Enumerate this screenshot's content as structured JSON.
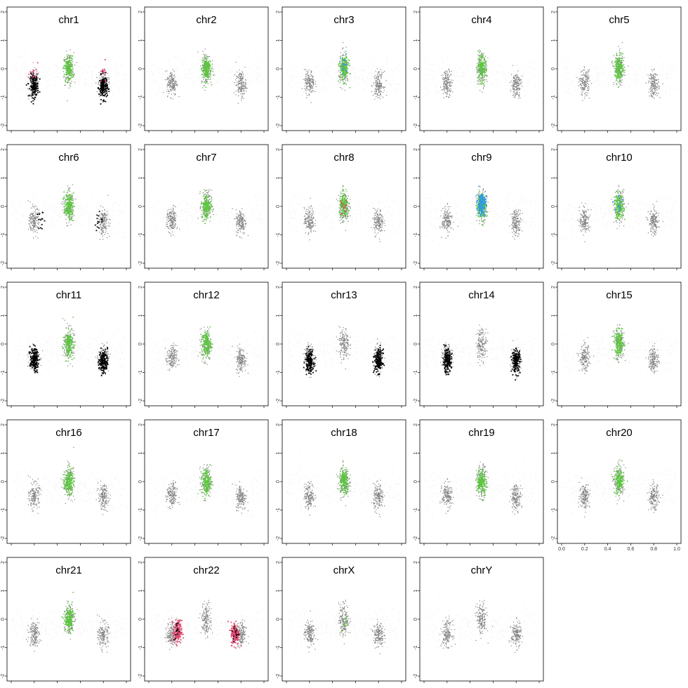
{
  "colors": {
    "background_cloud": "#eeeeee",
    "reference": "#808080",
    "normal": "#5ac83c",
    "loss": "#000000",
    "gain": "#e0466e",
    "amplification": "#2f9be0",
    "frame": "#000000"
  },
  "chart_data": {
    "type": "scatter",
    "layout": "5x5 small multiples",
    "xlim": [
      0,
      1
    ],
    "ylim": [
      -2,
      2
    ],
    "x_tick_labels": [
      "0.0",
      "0.2",
      "0.4",
      "0.6",
      "0.8",
      "1.0"
    ],
    "y_tick_labels": [
      "-2",
      "-1",
      "0",
      "1",
      "2"
    ],
    "reference_clusters": [
      {
        "x": 0.2,
        "y": -0.5
      },
      {
        "x": 0.5,
        "y": 0.0
      },
      {
        "x": 0.8,
        "y": -0.55
      }
    ],
    "panels": [
      {
        "title": "chr1",
        "highlight": [
          {
            "state": "normal",
            "x": 0.5,
            "y": 0.0
          },
          {
            "state": "loss",
            "x": 0.2,
            "y": -0.6
          },
          {
            "state": "loss",
            "x": 0.8,
            "y": -0.65
          },
          {
            "state": "gain",
            "x": 0.2,
            "y": -0.2,
            "sparse": true
          },
          {
            "state": "gain",
            "x": 0.8,
            "y": -0.2,
            "sparse": true
          }
        ]
      },
      {
        "title": "chr2",
        "highlight": [
          {
            "state": "normal",
            "x": 0.5,
            "y": 0.0
          }
        ]
      },
      {
        "title": "chr3",
        "highlight": [
          {
            "state": "normal",
            "x": 0.5,
            "y": 0.0
          },
          {
            "state": "amplification",
            "x": 0.5,
            "y": 0.1,
            "sparse": true
          }
        ]
      },
      {
        "title": "chr4",
        "highlight": [
          {
            "state": "normal",
            "x": 0.5,
            "y": 0.0
          }
        ]
      },
      {
        "title": "chr5",
        "highlight": [
          {
            "state": "normal",
            "x": 0.5,
            "y": 0.0
          }
        ]
      },
      {
        "title": "chr6",
        "highlight": [
          {
            "state": "normal",
            "x": 0.5,
            "y": 0.0
          },
          {
            "state": "loss",
            "x": 0.25,
            "y": -0.4,
            "sparse": true
          },
          {
            "state": "loss",
            "x": 0.75,
            "y": -0.55,
            "sparse": true
          }
        ]
      },
      {
        "title": "chr7",
        "highlight": [
          {
            "state": "normal",
            "x": 0.5,
            "y": 0.0
          }
        ]
      },
      {
        "title": "chr8",
        "highlight": [
          {
            "state": "normal",
            "x": 0.5,
            "y": 0.0
          },
          {
            "state": "gain",
            "x": 0.5,
            "y": 0.0,
            "sparse": true
          }
        ]
      },
      {
        "title": "chr9",
        "highlight": [
          {
            "state": "normal",
            "x": 0.5,
            "y": 0.0
          },
          {
            "state": "amplification",
            "x": 0.5,
            "y": 0.1
          }
        ]
      },
      {
        "title": "chr10",
        "highlight": [
          {
            "state": "normal",
            "x": 0.5,
            "y": 0.0
          },
          {
            "state": "amplification",
            "x": 0.5,
            "y": 0.1,
            "sparse": true
          }
        ]
      },
      {
        "title": "chr11",
        "highlight": [
          {
            "state": "normal",
            "x": 0.5,
            "y": 0.0
          },
          {
            "state": "loss",
            "x": 0.2,
            "y": -0.55
          },
          {
            "state": "loss",
            "x": 0.8,
            "y": -0.6
          }
        ]
      },
      {
        "title": "chr12",
        "highlight": [
          {
            "state": "normal",
            "x": 0.5,
            "y": 0.0
          }
        ]
      },
      {
        "title": "chr13",
        "highlight": [
          {
            "state": "loss",
            "x": 0.2,
            "y": -0.6
          },
          {
            "state": "loss",
            "x": 0.8,
            "y": -0.6
          }
        ]
      },
      {
        "title": "chr14",
        "highlight": [
          {
            "state": "loss",
            "x": 0.2,
            "y": -0.6
          },
          {
            "state": "loss",
            "x": 0.8,
            "y": -0.6
          }
        ]
      },
      {
        "title": "chr15",
        "highlight": [
          {
            "state": "normal",
            "x": 0.5,
            "y": 0.0
          }
        ]
      },
      {
        "title": "chr16",
        "highlight": [
          {
            "state": "normal",
            "x": 0.5,
            "y": 0.0
          }
        ]
      },
      {
        "title": "chr17",
        "highlight": [
          {
            "state": "normal",
            "x": 0.5,
            "y": 0.0
          }
        ]
      },
      {
        "title": "chr18",
        "highlight": [
          {
            "state": "normal",
            "x": 0.5,
            "y": 0.0
          }
        ]
      },
      {
        "title": "chr19",
        "highlight": [
          {
            "state": "normal",
            "x": 0.5,
            "y": 0.0
          }
        ]
      },
      {
        "title": "chr20",
        "highlight": [
          {
            "state": "normal",
            "x": 0.5,
            "y": 0.0
          }
        ]
      },
      {
        "title": "chr21",
        "highlight": [
          {
            "state": "normal",
            "x": 0.5,
            "y": 0.0
          }
        ]
      },
      {
        "title": "chr22",
        "highlight": [
          {
            "state": "gain",
            "x": 0.25,
            "y": -0.45
          },
          {
            "state": "gain",
            "x": 0.75,
            "y": -0.5
          },
          {
            "state": "loss",
            "x": 0.25,
            "y": -0.45,
            "sparse": true
          },
          {
            "state": "loss",
            "x": 0.75,
            "y": -0.5,
            "sparse": true
          }
        ]
      },
      {
        "title": "chrX",
        "highlight": [
          {
            "state": "normal",
            "x": 0.5,
            "y": 0.0,
            "sparse": true
          }
        ]
      },
      {
        "title": "chrY",
        "highlight": []
      }
    ]
  }
}
